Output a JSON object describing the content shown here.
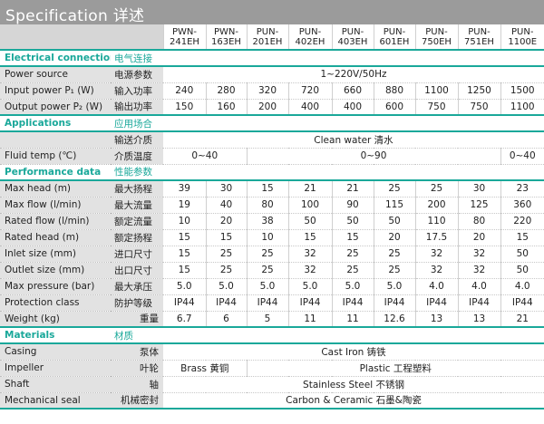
{
  "title": "Specification 详述",
  "accent": "#1aa89a",
  "models": [
    "PWN-\n241EH",
    "PWN-\n163EH",
    "PUN-\n201EH",
    "PUN-\n402EH",
    "PUN-\n403EH",
    "PUN-\n601EH",
    "PUN-\n750EH",
    "PUN-\n751EH",
    "PUN-\n1100E"
  ],
  "rows": [
    {
      "type": "sec",
      "en": "Electrical connection",
      "cn": "电气连接"
    },
    {
      "en": "Power source",
      "cn": "电源参数",
      "cells": [
        {
          "v": "1~220V/50Hz",
          "span": 9
        }
      ]
    },
    {
      "en": "Input power P₁ (W)",
      "cn": "输入功率",
      "cells": [
        "240",
        "280",
        "320",
        "720",
        "660",
        "880",
        "1100",
        "1250",
        "1500"
      ]
    },
    {
      "en": "Output power P₂ (W)",
      "cn": "输出功率",
      "cells": [
        "150",
        "160",
        "200",
        "400",
        "400",
        "600",
        "750",
        "750",
        "1100"
      ],
      "last": true
    },
    {
      "type": "sec",
      "en": "Applications",
      "cn": "应用场合"
    },
    {
      "en": "",
      "cn": "输送介质",
      "cells": [
        {
          "v": "Clean water  清水",
          "span": 9
        }
      ]
    },
    {
      "en": "Fluid temp (℃)",
      "cn": "介质温度",
      "cells": [
        {
          "v": "0~40",
          "span": 2
        },
        {
          "v": "0~90",
          "span": 6
        },
        {
          "v": "0~40",
          "span": 1
        }
      ]
    },
    {
      "type": "sec",
      "en": "Performance data",
      "cn": "性能参数"
    },
    {
      "en": "Max head (m)",
      "cn": "最大扬程",
      "cells": [
        "39",
        "30",
        "15",
        "21",
        "21",
        "25",
        "25",
        "30",
        "23"
      ]
    },
    {
      "en": "Max flow (l/min)",
      "cn": "最大流量",
      "cells": [
        "19",
        "40",
        "80",
        "100",
        "90",
        "115",
        "200",
        "125",
        "360"
      ]
    },
    {
      "en": "Rated flow (l/min)",
      "cn": "额定流量",
      "cells": [
        "10",
        "20",
        "38",
        "50",
        "50",
        "50",
        "110",
        "80",
        "220"
      ]
    },
    {
      "en": "Rated head (m)",
      "cn": "额定扬程",
      "cells": [
        "15",
        "15",
        "10",
        "15",
        "15",
        "20",
        "17.5",
        "20",
        "15"
      ]
    },
    {
      "en": "Inlet size (mm)",
      "cn": "进口尺寸",
      "cells": [
        "15",
        "25",
        "25",
        "32",
        "25",
        "25",
        "32",
        "32",
        "50"
      ]
    },
    {
      "en": "Outlet size (mm)",
      "cn": "出口尺寸",
      "cells": [
        "15",
        "25",
        "25",
        "32",
        "25",
        "25",
        "32",
        "32",
        "50"
      ]
    },
    {
      "en": "Max pressure (bar)",
      "cn": "最大承压",
      "cells": [
        "5.0",
        "5.0",
        "5.0",
        "5.0",
        "5.0",
        "5.0",
        "4.0",
        "4.0",
        "4.0"
      ]
    },
    {
      "en": "Protection class",
      "cn": "防护等级",
      "cells": [
        "IP44",
        "IP44",
        "IP44",
        "IP44",
        "IP44",
        "IP44",
        "IP44",
        "IP44",
        "IP44"
      ]
    },
    {
      "en": "Weight  (kg)",
      "cn": "重量",
      "cnRight": true,
      "cells": [
        "6.7",
        "6",
        "5",
        "11",
        "11",
        "12.6",
        "13",
        "13",
        "21"
      ],
      "last": true
    },
    {
      "type": "sec",
      "en": "Materials",
      "cn": "材质",
      "cnRight": true
    },
    {
      "en": "Casing",
      "cn": "泵体",
      "cnRight": true,
      "cells": [
        {
          "v": "Cast Iron  铸铁",
          "span": 9
        }
      ]
    },
    {
      "en": "Impeller",
      "cn": "叶轮",
      "cnRight": true,
      "cells": [
        {
          "v": "Brass  黄铜",
          "span": 2
        },
        {
          "v": "Plastic  工程塑料",
          "span": 7
        }
      ]
    },
    {
      "en": "Shaft",
      "cn": "轴",
      "cnRight": true,
      "cells": [
        {
          "v": "Stainless Steel  不锈钢",
          "span": 9
        }
      ]
    },
    {
      "en": "Mechanical seal",
      "cn": "机械密封",
      "cnRight": true,
      "cells": [
        {
          "v": "Carbon & Ceramic  石墨&陶瓷",
          "span": 9
        }
      ],
      "last": true
    }
  ]
}
